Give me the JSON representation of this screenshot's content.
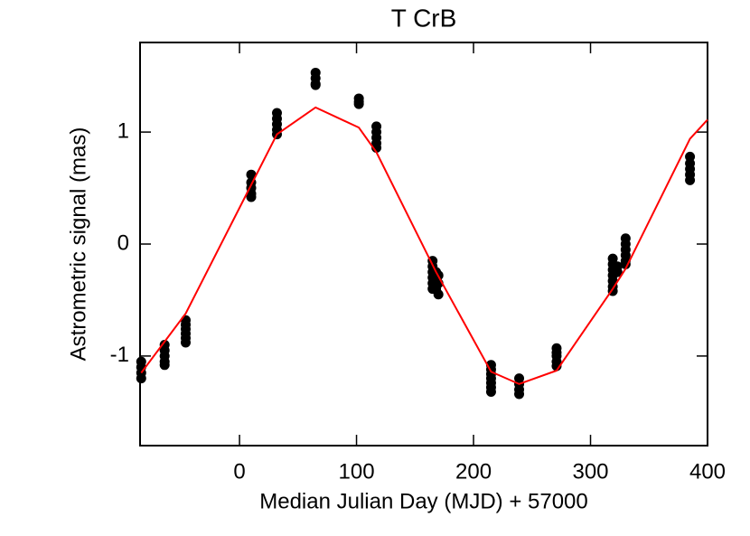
{
  "chart_data": {
    "type": "scatter",
    "title": "T CrB",
    "xlabel": "Median Julian Day (MJD) + 57000",
    "ylabel": "Astrometric signal  (mas)",
    "xlim": [
      -85,
      400
    ],
    "ylim": [
      -1.8,
      1.8
    ],
    "xticks": [
      0,
      100,
      200,
      300,
      400
    ],
    "yticks": [
      -1,
      0,
      1
    ],
    "series": [
      {
        "type": "scatter",
        "color": "#000000",
        "x": [
          -84,
          -84,
          -84,
          -84,
          -64,
          -64,
          -64,
          -64,
          -64,
          -46,
          -46,
          -46,
          -46,
          -46,
          -46,
          10,
          10,
          10,
          10,
          10,
          32,
          32,
          32,
          32,
          32,
          65,
          65,
          65,
          65,
          102,
          102,
          102,
          117,
          117,
          117,
          117,
          117,
          165,
          165,
          165,
          165,
          165,
          165,
          168,
          168,
          168,
          168,
          170,
          170,
          170,
          215,
          215,
          215,
          215,
          215,
          215,
          215,
          239,
          239,
          239,
          239,
          271,
          271,
          271,
          271,
          271,
          319,
          319,
          319,
          319,
          319,
          319,
          319,
          323,
          323,
          330,
          330,
          330,
          330,
          330,
          330,
          385,
          385,
          385,
          385,
          385
        ],
        "values": [
          -1.05,
          -1.1,
          -1.15,
          -1.2,
          -0.9,
          -0.95,
          -1.0,
          -1.05,
          -1.08,
          -0.68,
          -0.72,
          -0.76,
          -0.8,
          -0.84,
          -0.88,
          0.62,
          0.55,
          0.5,
          0.45,
          0.42,
          1.17,
          1.12,
          1.07,
          1.02,
          0.98,
          1.53,
          1.48,
          1.43,
          1.42,
          1.3,
          1.27,
          1.25,
          1.05,
          1.0,
          0.95,
          0.9,
          0.86,
          -0.15,
          -0.2,
          -0.25,
          -0.3,
          -0.35,
          -0.4,
          -0.25,
          -0.3,
          -0.35,
          -0.4,
          -0.28,
          -0.35,
          -0.45,
          -1.08,
          -1.12,
          -1.16,
          -1.2,
          -1.24,
          -1.28,
          -1.32,
          -1.2,
          -1.25,
          -1.3,
          -1.34,
          -0.93,
          -0.97,
          -1.0,
          -1.05,
          -1.09,
          -0.13,
          -0.18,
          -0.23,
          -0.28,
          -0.33,
          -0.38,
          -0.42,
          -0.2,
          -0.25,
          0.05,
          0.0,
          -0.05,
          -0.1,
          -0.15,
          -0.18,
          0.78,
          0.72,
          0.67,
          0.62,
          0.57
        ]
      },
      {
        "type": "line",
        "color": "#ff0000",
        "x": [
          -84,
          -46,
          32,
          65,
          102,
          117,
          168,
          215,
          239,
          271,
          319,
          330,
          385,
          400
        ],
        "values": [
          -1.15,
          -0.62,
          0.98,
          1.22,
          1.04,
          0.82,
          -0.25,
          -1.14,
          -1.25,
          -1.13,
          -0.4,
          -0.22,
          0.94,
          1.11
        ]
      }
    ]
  }
}
